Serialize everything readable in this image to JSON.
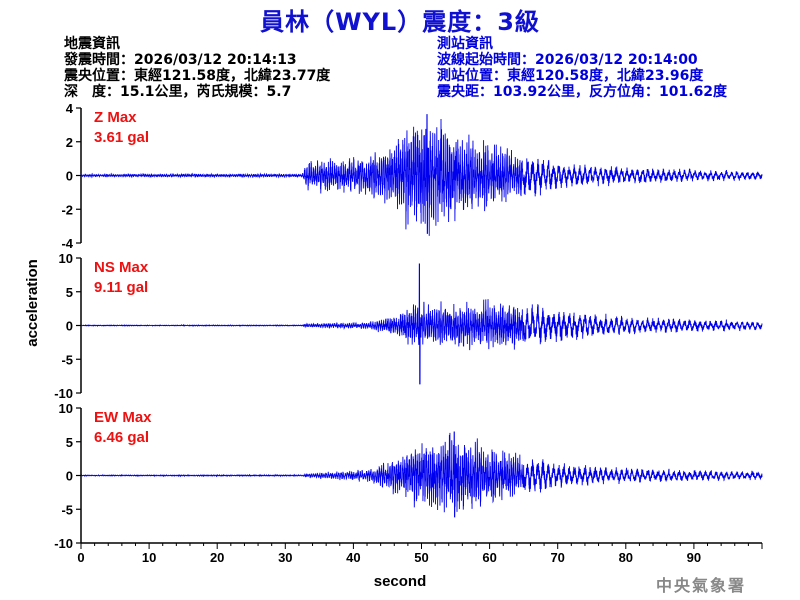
{
  "header": {
    "title": "員林（WYL）震度：3級"
  },
  "earthquake_info": {
    "heading": "地震資訊",
    "origin_time": "發震時間：2026/03/12 20:14:13",
    "epicenter": "震央位置：東經121.58度，北緯23.77度",
    "depth_magnitude": "深　度：15.1公里，芮氏規模：5.7"
  },
  "station_info": {
    "heading": "測站資訊",
    "waveform_start": "波線起始時間：2026/03/12 20:14:00",
    "station_location": "測站位置：東經120.58度，北緯23.96度",
    "distance_azimuth": "震央距：103.92公里，反方位角：101.62度"
  },
  "footer": {
    "agency": "中央氣象署"
  },
  "chart_data": {
    "type": "line",
    "xlabel": "second",
    "ylabel": "acceleration",
    "xlim": [
      0,
      100
    ],
    "xticks": [
      "0",
      "10",
      "20",
      "30",
      "40",
      "50",
      "60",
      "70",
      "80",
      "90"
    ],
    "line_color": "#0000ee",
    "panels": [
      {
        "name": "Z",
        "max_label": "Z Max",
        "max_value_label": "3.61 gal",
        "max_value": 3.61,
        "ylim": [
          -4,
          4
        ],
        "yticks": [
          "4",
          "2",
          "0",
          "-2",
          "-4"
        ],
        "peak_time": 50.8,
        "envelope": [
          [
            0,
            0.08
          ],
          [
            32.5,
            0.1
          ],
          [
            33,
            0.9
          ],
          [
            40,
            1.0
          ],
          [
            45,
            1.6
          ],
          [
            47,
            2.6
          ],
          [
            50,
            3.6
          ],
          [
            53,
            3.3
          ],
          [
            57,
            2.2
          ],
          [
            61,
            1.7
          ],
          [
            64,
            1.4
          ],
          [
            70,
            0.8
          ],
          [
            80,
            0.45
          ],
          [
            90,
            0.35
          ],
          [
            100,
            0.25
          ]
        ]
      },
      {
        "name": "NS",
        "max_label": "NS Max",
        "max_value_label": "9.11 gal",
        "max_value": 9.11,
        "ylim": [
          -10,
          10
        ],
        "yticks": [
          "10",
          "5",
          "0",
          "-5",
          "-10"
        ],
        "peak_time": 49.7,
        "envelope": [
          [
            0,
            0.05
          ],
          [
            32.5,
            0.06
          ],
          [
            33,
            0.3
          ],
          [
            42,
            0.5
          ],
          [
            46,
            1.5
          ],
          [
            49,
            3.2
          ],
          [
            50,
            3.2
          ],
          [
            55,
            3.2
          ],
          [
            60,
            3.8
          ],
          [
            65,
            3.2
          ],
          [
            70,
            2.4
          ],
          [
            80,
            1.2
          ],
          [
            90,
            0.9
          ],
          [
            100,
            0.7
          ]
        ]
      },
      {
        "name": "EW",
        "max_label": "EW Max",
        "max_value_label": "6.46 gal",
        "max_value": 6.46,
        "ylim": [
          -10,
          10
        ],
        "yticks": [
          "10",
          "5",
          "0",
          "-5",
          "-10"
        ],
        "peak_time": 54.8,
        "envelope": [
          [
            0,
            0.06
          ],
          [
            32.5,
            0.08
          ],
          [
            33,
            0.3
          ],
          [
            42,
            0.9
          ],
          [
            46,
            2.5
          ],
          [
            49,
            4.5
          ],
          [
            52,
            5.5
          ],
          [
            55,
            6.4
          ],
          [
            60,
            4.0
          ],
          [
            64,
            3.0
          ],
          [
            70,
            1.8
          ],
          [
            80,
            1.1
          ],
          [
            90,
            0.8
          ],
          [
            100,
            0.6
          ]
        ]
      }
    ]
  }
}
